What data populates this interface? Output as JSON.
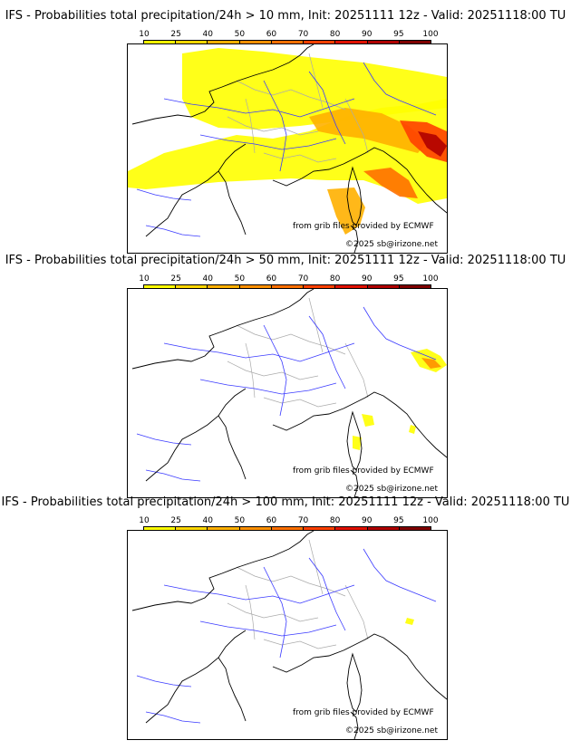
{
  "panels": [
    {
      "title": "IFS - Probabilities total precipitation/24h > 10 mm, Init: 20251111 12z - Valid: 20251118:00 TU",
      "threshold": "10 mm"
    },
    {
      "title": "IFS - Probabilities total precipitation/24h > 50 mm, Init: 20251111 12z - Valid: 20251118:00 TU",
      "threshold": "50 mm"
    },
    {
      "title": "IFS - Probabilities total precipitation/24h > 100 mm, Init: 20251111 12z - Valid: 20251118:00 TU",
      "threshold": "100 mm"
    }
  ],
  "legend": {
    "ticks": [
      "10",
      "25",
      "40",
      "50",
      "60",
      "70",
      "80",
      "90",
      "95",
      "100"
    ],
    "colors": [
      "#ffff00",
      "#ffd700",
      "#ffb000",
      "#ff9000",
      "#ff7000",
      "#ff4000",
      "#e01000",
      "#b00000",
      "#800000"
    ]
  },
  "credits": {
    "source": "from grib files provided by ECMWF",
    "copyright": "©2025 sb@irizone.net"
  },
  "colors": {
    "coast": "#000000",
    "rivers": "#3a3aff",
    "borders": "#aaaaaa"
  }
}
